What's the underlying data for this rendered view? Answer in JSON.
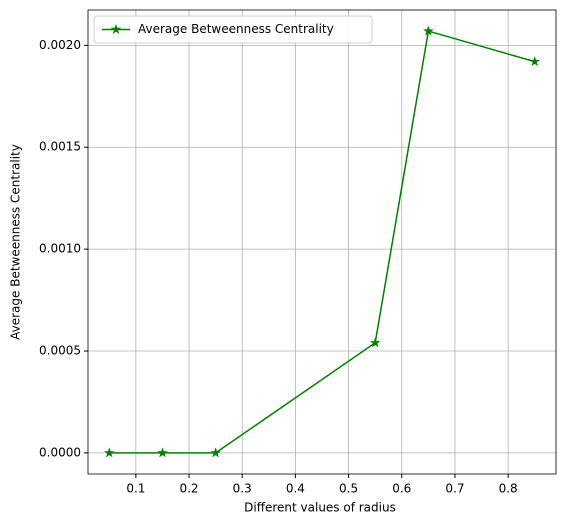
{
  "chart_data": {
    "type": "line",
    "xlabel": "Different values of radius",
    "ylabel": "Average Betweenness Centrality",
    "x": [
      0.05,
      0.15,
      0.25,
      0.55,
      0.65,
      0.85
    ],
    "series": [
      {
        "name": "Average Betweenness Centrality",
        "color": "#008000",
        "marker": "star",
        "values": [
          0,
          0,
          0,
          0.00054,
          0.00207,
          0.00192
        ]
      }
    ],
    "xlim": [
      0.01,
      0.89
    ],
    "xticks": [
      0.1,
      0.2,
      0.3,
      0.4,
      0.5,
      0.6,
      0.7,
      0.8
    ],
    "ylim": [
      -0.0001035,
      0.0021735
    ],
    "yticks": [
      {
        "value": 0,
        "label": "0.0000"
      },
      {
        "value": 0.0005,
        "label": "0.0005"
      },
      {
        "value": 0.001,
        "label": "0.0010"
      },
      {
        "value": 0.0015,
        "label": "0.0015"
      },
      {
        "value": 0.002,
        "label": "0.0020"
      }
    ],
    "grid": true,
    "legend": "upper left"
  }
}
